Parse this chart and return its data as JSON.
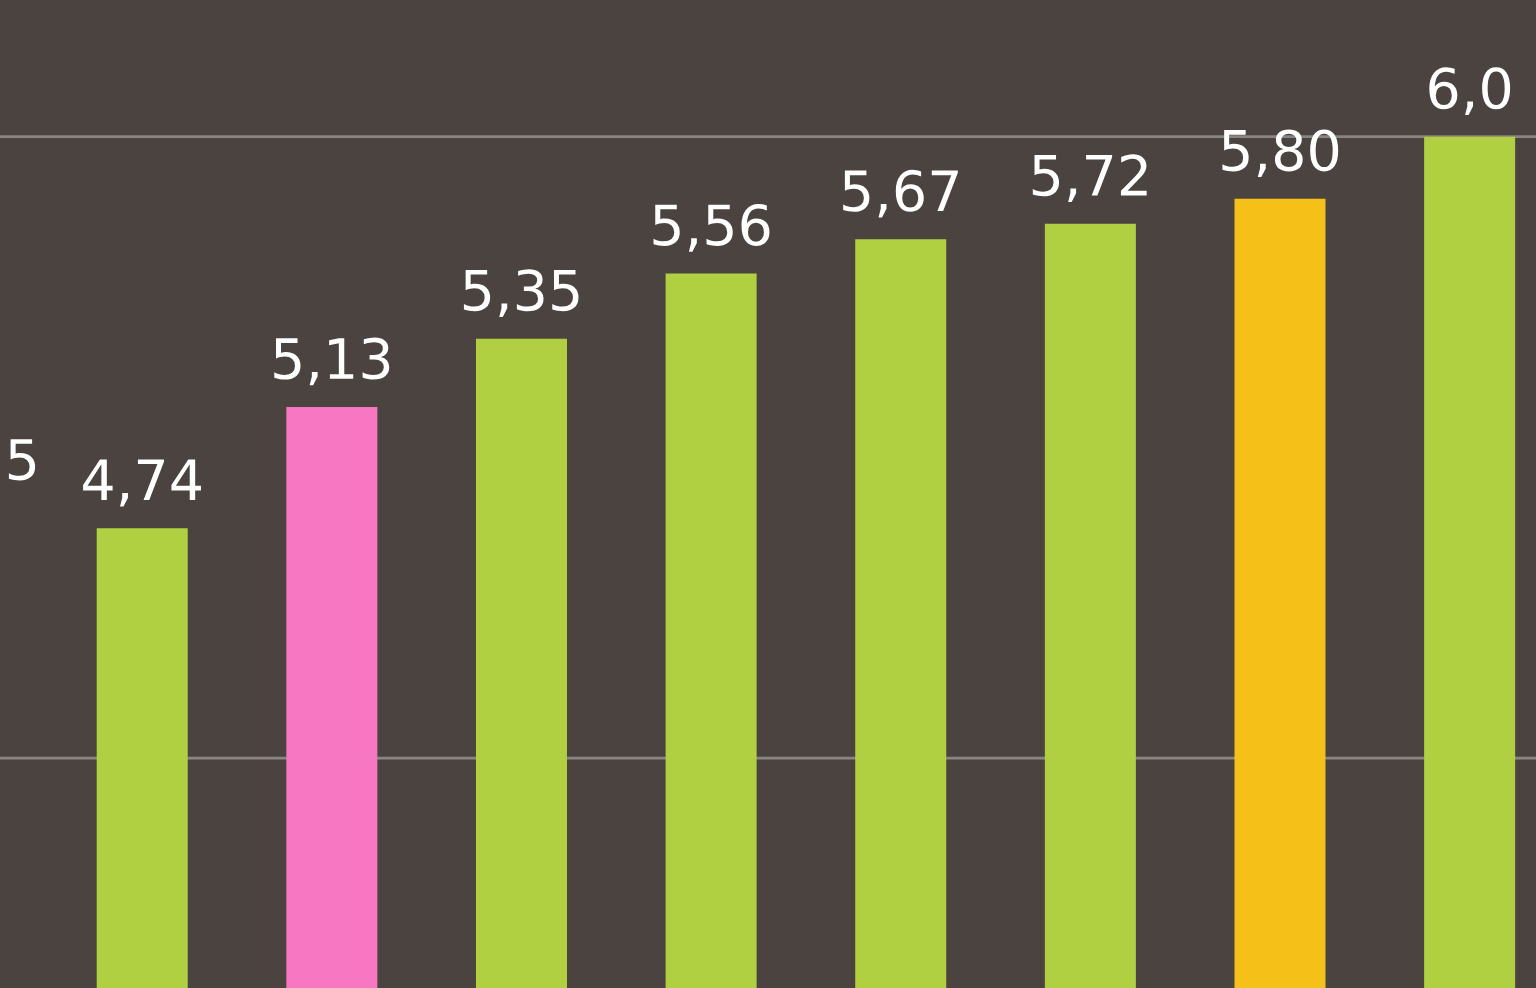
{
  "chart_data": {
    "type": "bar",
    "categories": [
      null,
      null,
      null,
      null,
      null,
      null,
      null,
      null
    ],
    "values": [
      4.74,
      5.13,
      5.35,
      5.56,
      5.67,
      5.72,
      5.8,
      6.0
    ],
    "colors": [
      "#b0d042",
      "#f777c3",
      "#b0d042",
      "#b0d042",
      "#b0d042",
      "#b0d042",
      "#f5c018",
      "#b0d042"
    ],
    "value_labels": [
      "4,74",
      "5,13",
      "5,35",
      "5,56",
      "5,67",
      "5,72",
      "5,80",
      "6,0"
    ],
    "ylim": [
      3.26,
      6.44
    ],
    "ref_lines": [
      {
        "axis": "y",
        "value": 4,
        "color": "#8a8583"
      },
      {
        "axis": "y",
        "value": 6,
        "color": "#8a8583"
      }
    ],
    "annotations": [
      "5"
    ]
  }
}
